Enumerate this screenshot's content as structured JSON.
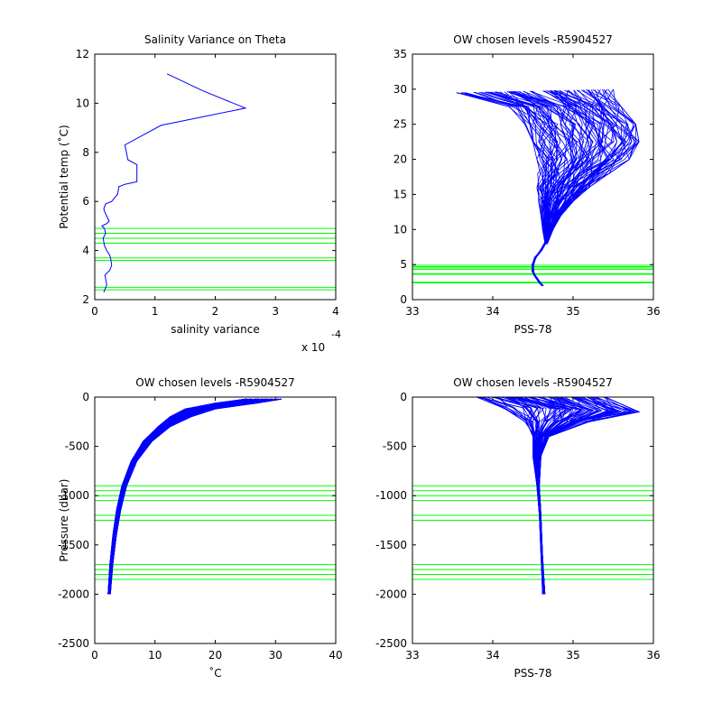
{
  "chart_data": [
    {
      "type": "line",
      "title": "Salinity Variance on Theta",
      "xlabel": "salinity variance",
      "ylabel": "Potential temp (˚C)",
      "xlim": [
        0,
        4
      ],
      "ylim": [
        2,
        12
      ],
      "xticks": [
        0,
        1,
        2,
        3,
        4
      ],
      "yticks": [
        2,
        4,
        6,
        8,
        10,
        12
      ],
      "x_exponent_base": "x 10",
      "x_exponent_power": "-4",
      "series": [
        {
          "color": "#0000ff",
          "x": [
            0.15,
            0.2,
            0.17,
            0.25,
            0.28,
            0.27,
            0.25,
            0.2,
            0.16,
            0.14,
            0.18,
            0.16,
            0.12,
            0.2,
            0.24,
            0.2,
            0.16,
            0.15,
            0.18,
            0.28,
            0.38,
            0.4,
            0.5,
            0.7,
            0.7,
            0.55,
            0.5,
            1.1,
            2.5,
            1.8,
            1.2
          ],
          "y": [
            2.3,
            2.6,
            3.0,
            3.2,
            3.4,
            3.6,
            3.8,
            4.0,
            4.2,
            4.5,
            4.7,
            4.9,
            5.0,
            5.1,
            5.2,
            5.4,
            5.6,
            5.7,
            5.9,
            6.0,
            6.3,
            6.6,
            6.7,
            6.8,
            7.5,
            7.7,
            8.3,
            9.1,
            9.8,
            10.5,
            11.2
          ]
        }
      ],
      "hlines": {
        "color": "#00ff00",
        "values": [
          2.4,
          2.5,
          3.6,
          3.7,
          4.3,
          4.5,
          4.7,
          4.9
        ]
      }
    },
    {
      "type": "line",
      "title": "OW chosen levels -R5904527",
      "xlabel": "PSS-78",
      "ylabel": "",
      "xlim": [
        33,
        36
      ],
      "ylim": [
        0,
        35
      ],
      "xticks": [
        33,
        34,
        35,
        36
      ],
      "yticks": [
        0,
        5,
        10,
        15,
        20,
        25,
        30,
        35
      ],
      "profile_count": 90,
      "profile_color": "#0000ff",
      "deep_segment": {
        "x": [
          34.62,
          34.58,
          34.55,
          34.52,
          34.5,
          34.5,
          34.53,
          34.6,
          34.65
        ],
        "y": [
          2.0,
          2.5,
          3.0,
          3.5,
          4.0,
          5.0,
          6.0,
          7.0,
          8.0
        ]
      },
      "envelope_left": {
        "x": [
          34.65,
          34.62,
          34.6,
          34.57,
          34.55,
          34.56,
          34.55,
          34.5,
          34.4,
          34.2,
          33.55
        ],
        "y": [
          8.0,
          10.0,
          12.0,
          14.0,
          16.0,
          18.0,
          20.0,
          22.5,
          25.0,
          27.5,
          29.5
        ]
      },
      "envelope_right": {
        "x": [
          34.68,
          34.75,
          34.85,
          35.0,
          35.2,
          35.45,
          35.7,
          35.82,
          35.78,
          35.6,
          35.5
        ],
        "y": [
          8.0,
          10.0,
          12.0,
          14.0,
          16.0,
          18.0,
          20.0,
          22.5,
          25.0,
          27.5,
          30.0
        ]
      },
      "hlines": {
        "color": "#00ff00",
        "values": [
          2.4,
          2.5,
          3.6,
          3.7,
          4.3,
          4.5,
          4.7,
          4.9
        ]
      }
    },
    {
      "type": "line",
      "title": "OW chosen levels -R5904527",
      "xlabel": "˚C",
      "ylabel": "Pressure (dbar)",
      "xlim": [
        0,
        40
      ],
      "ylim": [
        -2500,
        0
      ],
      "xticks": [
        0,
        10,
        20,
        30,
        40
      ],
      "yticks": [
        -2500,
        -2000,
        -1500,
        -1000,
        -500,
        0
      ],
      "profile_count": 90,
      "profile_color": "#0000ff",
      "envelope_left": {
        "x": [
          2.2,
          2.5,
          3.0,
          3.6,
          4.5,
          6.0,
          8.0,
          10.5,
          12.5,
          15.0,
          20.0,
          25.0
        ],
        "y": [
          -2000,
          -1700,
          -1400,
          -1150,
          -900,
          -650,
          -450,
          -300,
          -200,
          -120,
          -60,
          -20
        ]
      },
      "envelope_right": {
        "x": [
          2.6,
          3.0,
          3.6,
          4.3,
          5.3,
          7.0,
          9.5,
          12.5,
          16.0,
          20.0,
          27.0,
          31.0
        ],
        "y": [
          -2000,
          -1700,
          -1400,
          -1150,
          -900,
          -650,
          -450,
          -300,
          -200,
          -120,
          -60,
          -20
        ]
      },
      "hlines": {
        "color": "#00ff00",
        "values": [
          -900,
          -950,
          -1000,
          -1050,
          -1200,
          -1250,
          -1700,
          -1750,
          -1800,
          -1850
        ]
      }
    },
    {
      "type": "line",
      "title": "OW chosen levels -R5904527",
      "xlabel": "PSS-78",
      "ylabel": "",
      "xlim": [
        33,
        36
      ],
      "ylim": [
        -2500,
        0
      ],
      "xticks": [
        33,
        34,
        35,
        36
      ],
      "yticks": [
        -2500,
        -2000,
        -1500,
        -1000,
        -500,
        0
      ],
      "profile_count": 90,
      "profile_color": "#0000ff",
      "envelope_left": {
        "x": [
          34.62,
          34.6,
          34.58,
          34.55,
          34.5,
          34.5,
          34.4,
          34.1,
          33.8
        ],
        "y": [
          -2000,
          -1600,
          -1200,
          -900,
          -600,
          -400,
          -250,
          -100,
          0
        ]
      },
      "envelope_right": {
        "x": [
          34.65,
          34.62,
          34.6,
          34.58,
          34.6,
          34.7,
          35.2,
          35.82,
          35.4
        ],
        "y": [
          -2000,
          -1600,
          -1200,
          -900,
          -600,
          -400,
          -250,
          -150,
          0
        ]
      },
      "hlines": {
        "color": "#00ff00",
        "values": [
          -900,
          -950,
          -1000,
          -1050,
          -1200,
          -1250,
          -1700,
          -1750,
          -1800,
          -1850
        ]
      }
    }
  ]
}
